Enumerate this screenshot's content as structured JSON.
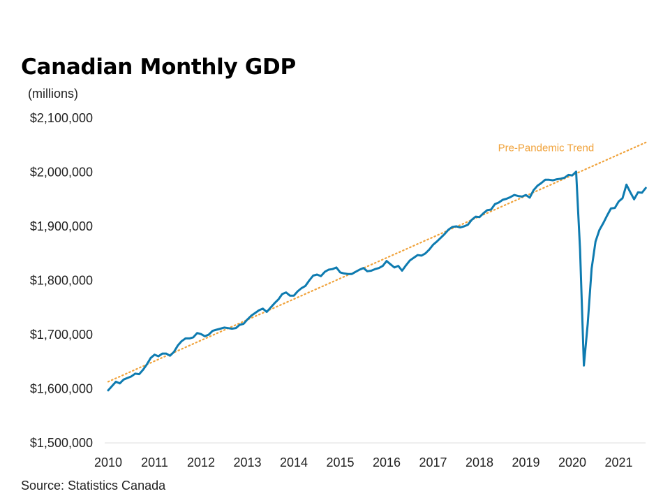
{
  "title": "Canadian Monthly GDP",
  "subtitle": "(millions)",
  "source": "Source: Statistics Canada",
  "colors": {
    "gdp_line": "#0e7bb0",
    "trend_line": "#f0a23a",
    "axis": "#dddddd"
  },
  "chart_data": {
    "type": "line",
    "title": "Canadian Monthly GDP",
    "ylabel": "(millions)",
    "xlabel": "",
    "ylim": [
      1500000,
      2100000
    ],
    "xlim": [
      2010,
      2021.67
    ],
    "y_ticks": [
      1500000,
      1600000,
      1700000,
      1800000,
      1900000,
      2000000,
      2100000
    ],
    "y_tick_labels": [
      "$1,500,000",
      "$1,600,000",
      "$1,700,000",
      "$1,800,000",
      "$1,900,000",
      "$2,000,000",
      "$2,100,000"
    ],
    "x_ticks": [
      2010,
      2011,
      2012,
      2013,
      2014,
      2015,
      2016,
      2017,
      2018,
      2019,
      2020,
      2021
    ],
    "x_tick_labels": [
      "2010",
      "2011",
      "2012",
      "2013",
      "2014",
      "2015",
      "2016",
      "2017",
      "2018",
      "2019",
      "2020",
      "2021"
    ],
    "grid": false,
    "series": [
      {
        "color": "#0e7bb0",
        "style": "solid",
        "points": [
          [
            2010.0,
            1597000
          ],
          [
            2010.083,
            1605000
          ],
          [
            2010.167,
            1613000
          ],
          [
            2010.25,
            1610000
          ],
          [
            2010.333,
            1617000
          ],
          [
            2010.417,
            1620000
          ],
          [
            2010.5,
            1623000
          ],
          [
            2010.583,
            1628000
          ],
          [
            2010.667,
            1627000
          ],
          [
            2010.75,
            1635000
          ],
          [
            2010.833,
            1645000
          ],
          [
            2010.917,
            1657000
          ],
          [
            2011.0,
            1663000
          ],
          [
            2011.083,
            1660000
          ],
          [
            2011.167,
            1665000
          ],
          [
            2011.25,
            1665000
          ],
          [
            2011.333,
            1661000
          ],
          [
            2011.417,
            1668000
          ],
          [
            2011.5,
            1680000
          ],
          [
            2011.583,
            1688000
          ],
          [
            2011.667,
            1693000
          ],
          [
            2011.75,
            1693000
          ],
          [
            2011.833,
            1695000
          ],
          [
            2011.917,
            1703000
          ],
          [
            2012.0,
            1701000
          ],
          [
            2012.083,
            1697000
          ],
          [
            2012.167,
            1700000
          ],
          [
            2012.25,
            1707000
          ],
          [
            2012.333,
            1709000
          ],
          [
            2012.417,
            1711000
          ],
          [
            2012.5,
            1713000
          ],
          [
            2012.583,
            1712000
          ],
          [
            2012.667,
            1711000
          ],
          [
            2012.75,
            1712000
          ],
          [
            2012.833,
            1718000
          ],
          [
            2012.917,
            1720000
          ],
          [
            2013.0,
            1728000
          ],
          [
            2013.083,
            1735000
          ],
          [
            2013.167,
            1740000
          ],
          [
            2013.25,
            1745000
          ],
          [
            2013.333,
            1748000
          ],
          [
            2013.417,
            1742000
          ],
          [
            2013.5,
            1750000
          ],
          [
            2013.583,
            1758000
          ],
          [
            2013.667,
            1765000
          ],
          [
            2013.75,
            1775000
          ],
          [
            2013.833,
            1778000
          ],
          [
            2013.917,
            1772000
          ],
          [
            2014.0,
            1772000
          ],
          [
            2014.083,
            1780000
          ],
          [
            2014.167,
            1786000
          ],
          [
            2014.25,
            1790000
          ],
          [
            2014.333,
            1800000
          ],
          [
            2014.417,
            1809000
          ],
          [
            2014.5,
            1811000
          ],
          [
            2014.583,
            1808000
          ],
          [
            2014.667,
            1816000
          ],
          [
            2014.75,
            1820000
          ],
          [
            2014.833,
            1821000
          ],
          [
            2014.917,
            1824000
          ],
          [
            2015.0,
            1815000
          ],
          [
            2015.083,
            1813000
          ],
          [
            2015.167,
            1812000
          ],
          [
            2015.25,
            1812000
          ],
          [
            2015.333,
            1816000
          ],
          [
            2015.417,
            1820000
          ],
          [
            2015.5,
            1823000
          ],
          [
            2015.583,
            1817000
          ],
          [
            2015.667,
            1818000
          ],
          [
            2015.75,
            1821000
          ],
          [
            2015.833,
            1823000
          ],
          [
            2015.917,
            1827000
          ],
          [
            2016.0,
            1836000
          ],
          [
            2016.083,
            1830000
          ],
          [
            2016.167,
            1824000
          ],
          [
            2016.25,
            1827000
          ],
          [
            2016.333,
            1818000
          ],
          [
            2016.417,
            1828000
          ],
          [
            2016.5,
            1837000
          ],
          [
            2016.583,
            1842000
          ],
          [
            2016.667,
            1847000
          ],
          [
            2016.75,
            1846000
          ],
          [
            2016.833,
            1850000
          ],
          [
            2016.917,
            1857000
          ],
          [
            2017.0,
            1866000
          ],
          [
            2017.083,
            1872000
          ],
          [
            2017.167,
            1879000
          ],
          [
            2017.25,
            1886000
          ],
          [
            2017.333,
            1894000
          ],
          [
            2017.417,
            1899000
          ],
          [
            2017.5,
            1900000
          ],
          [
            2017.583,
            1898000
          ],
          [
            2017.667,
            1900000
          ],
          [
            2017.75,
            1903000
          ],
          [
            2017.833,
            1912000
          ],
          [
            2017.917,
            1918000
          ],
          [
            2018.0,
            1917000
          ],
          [
            2018.083,
            1924000
          ],
          [
            2018.167,
            1930000
          ],
          [
            2018.25,
            1931000
          ],
          [
            2018.333,
            1941000
          ],
          [
            2018.417,
            1944000
          ],
          [
            2018.5,
            1949000
          ],
          [
            2018.583,
            1951000
          ],
          [
            2018.667,
            1954000
          ],
          [
            2018.75,
            1958000
          ],
          [
            2018.833,
            1956000
          ],
          [
            2018.917,
            1955000
          ],
          [
            2019.0,
            1958000
          ],
          [
            2019.083,
            1953000
          ],
          [
            2019.167,
            1967000
          ],
          [
            2019.25,
            1975000
          ],
          [
            2019.333,
            1980000
          ],
          [
            2019.417,
            1986000
          ],
          [
            2019.5,
            1986000
          ],
          [
            2019.583,
            1985000
          ],
          [
            2019.667,
            1987000
          ],
          [
            2019.75,
            1988000
          ],
          [
            2019.833,
            1990000
          ],
          [
            2019.917,
            1995000
          ],
          [
            2020.0,
            1994000
          ],
          [
            2020.083,
            2001000
          ],
          [
            2020.167,
            1858000
          ],
          [
            2020.25,
            1643000
          ],
          [
            2020.333,
            1720000
          ],
          [
            2020.417,
            1822000
          ],
          [
            2020.5,
            1872000
          ],
          [
            2020.583,
            1893000
          ],
          [
            2020.667,
            1906000
          ],
          [
            2020.75,
            1920000
          ],
          [
            2020.833,
            1933000
          ],
          [
            2020.917,
            1934000
          ],
          [
            2021.0,
            1946000
          ],
          [
            2021.083,
            1952000
          ],
          [
            2021.167,
            1977000
          ],
          [
            2021.25,
            1963000
          ],
          [
            2021.333,
            1950000
          ],
          [
            2021.417,
            1963000
          ],
          [
            2021.5,
            1962000
          ],
          [
            2021.583,
            1971000
          ]
        ]
      },
      {
        "name": "Pre-Pandemic Trend",
        "color": "#f0a23a",
        "style": "dotted",
        "points": [
          [
            2010.0,
            1613000
          ],
          [
            2021.583,
            2055000
          ]
        ]
      }
    ],
    "annotations": [
      {
        "text": "Pre-Pandemic Trend",
        "x": 2018.4,
        "y": 2039000,
        "color": "#f0a23a"
      }
    ]
  }
}
